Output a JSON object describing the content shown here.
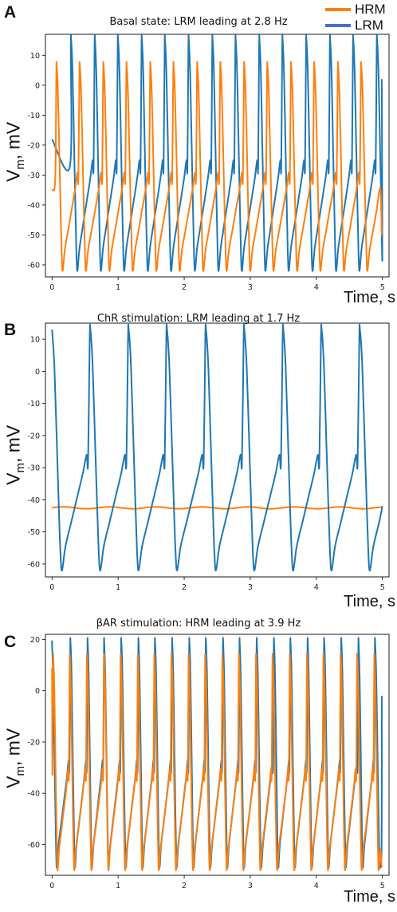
{
  "legend": [
    {
      "label": "HRM",
      "color": "#ff7f0e"
    },
    {
      "label": "LRM",
      "color": "#4472c4"
    }
  ],
  "y_label_main": "V",
  "y_label_sub": "m",
  "y_label_unit": ", mV",
  "x_label": "Time, s",
  "chart_data": [
    {
      "type": "line",
      "panel_label": "A",
      "title": "Basal state: LRM leading at 2.8 Hz",
      "xlim": [
        -0.1,
        5.1
      ],
      "ylim": [
        -64,
        17
      ],
      "x_ticks": [
        "0",
        "1",
        "2",
        "3",
        "4",
        "5"
      ],
      "y_ticks": [
        "10",
        "0",
        "-10",
        "-20",
        "-30",
        "-40",
        "-50",
        "-60"
      ],
      "grid": false,
      "series": [
        {
          "name": "HRM",
          "color": "#ff7f0e",
          "peak_times": [
            0.07,
            0.42,
            0.78,
            1.13,
            1.49,
            1.84,
            2.2,
            2.55,
            2.91,
            3.26,
            3.62,
            3.97,
            4.33,
            4.68,
            5.04
          ],
          "peak_mV": 6.5,
          "trough_mV": -62,
          "start_x": 0.0,
          "start_mV": -35,
          "end_x": 4.99,
          "end_mV": -50
        },
        {
          "name": "LRM",
          "color": "#1f77b4",
          "peak_times": [
            0.29,
            0.65,
            1.0,
            1.36,
            1.71,
            2.07,
            2.43,
            2.78,
            3.14,
            3.49,
            3.85,
            4.21,
            4.56,
            4.92
          ],
          "peak_mV": 15,
          "trough_mV": -62,
          "start_x": 0.0,
          "start_mV": -18,
          "end_x": 4.99,
          "end_mV": 2
        }
      ]
    },
    {
      "type": "line",
      "panel_label": "B",
      "title": "ChR stimulation: LRM leading at 1.7 Hz",
      "xlim": [
        -0.1,
        5.1
      ],
      "ylim": [
        -64,
        15
      ],
      "x_ticks": [
        "0",
        "1",
        "2",
        "3",
        "4",
        "5"
      ],
      "y_ticks": [
        "10",
        "0",
        "-10",
        "-20",
        "-30",
        "-40",
        "-50",
        "-60"
      ],
      "grid": false,
      "series": [
        {
          "name": "HRM",
          "color": "#ff7f0e",
          "flat_mV": -42.5,
          "x_range": [
            0,
            5
          ]
        },
        {
          "name": "LRM",
          "color": "#1f77b4",
          "peak_times": [
            0.0,
            0.58,
            1.16,
            1.74,
            2.33,
            2.91,
            3.5,
            4.08,
            4.66
          ],
          "peak_mV": 13,
          "trough_mV": -62,
          "end_x": 5.0,
          "end_mV": -42
        }
      ]
    },
    {
      "type": "line",
      "panel_label": "C",
      "title": "βAR stimulation: HRM leading at 3.9 Hz",
      "xlim": [
        -0.1,
        5.1
      ],
      "ylim": [
        -72,
        22
      ],
      "x_ticks": [
        "0",
        "1",
        "2",
        "3",
        "4",
        "5"
      ],
      "y_ticks": [
        "20",
        "0",
        "-20",
        "-40",
        "-60"
      ],
      "grid": false,
      "series": [
        {
          "name": "HRM",
          "color": "#ff7f0e",
          "peak_times": [
            0.02,
            0.27,
            0.53,
            0.79,
            1.04,
            1.3,
            1.55,
            1.81,
            2.07,
            2.32,
            2.58,
            2.83,
            3.09,
            3.34,
            3.6,
            3.86,
            4.11,
            4.37,
            4.62,
            4.88
          ],
          "peak_mV": 12.5,
          "trough_mV": -70,
          "start_x": 0.0,
          "start_mV": 9,
          "end_x": 4.99,
          "end_mV": -69
        },
        {
          "name": "LRM",
          "color": "#1f77b4",
          "peak_times": [
            0.0,
            0.28,
            0.54,
            0.79,
            1.05,
            1.31,
            1.56,
            1.82,
            2.08,
            2.33,
            2.59,
            2.84,
            3.1,
            3.36,
            3.61,
            3.87,
            4.12,
            4.38,
            4.64,
            4.89
          ],
          "peak_mV": 18.5,
          "trough_mV": -69,
          "start_x": 0.0,
          "start_mV": 18,
          "end_x": 4.99,
          "end_mV": -2
        }
      ]
    }
  ]
}
